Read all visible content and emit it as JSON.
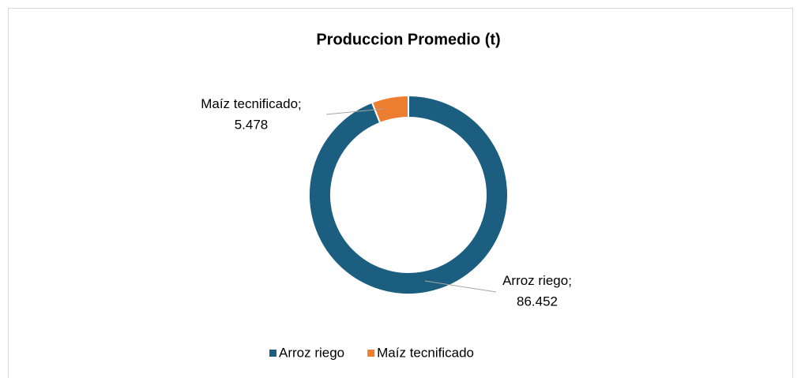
{
  "chart_data": {
    "type": "donut",
    "title": "Produccion Promedio (t)",
    "categories": [
      "Arroz riego",
      "Maíz tecnificado"
    ],
    "values": [
      86.452,
      5.478
    ],
    "colors": [
      "#1b5e80",
      "#ed7d31"
    ],
    "legend": "bottom"
  }
}
